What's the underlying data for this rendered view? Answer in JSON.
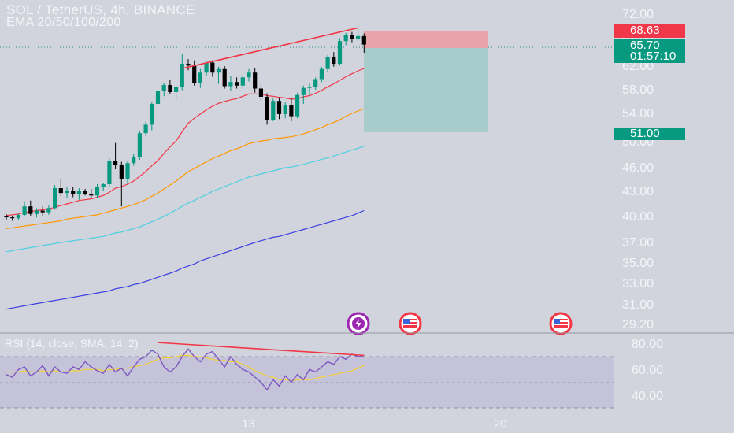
{
  "header": {
    "symbol_line": "SOL / TetherUS, 4h, BINANCE",
    "indicator_line": "EMA 20/50/100/200"
  },
  "rsi": {
    "label": "RSI (14, close, SMA, 14, 2)"
  },
  "price_tags": {
    "stop": "68.63",
    "last_price": "65.70",
    "countdown": "01:57:10",
    "target": "51.00"
  },
  "colors": {
    "background": "#d1d4dc",
    "up_candle": "#089981",
    "down_candle": "#000000",
    "ema20": "#f23645",
    "ema50": "#ff9800",
    "ema100": "#4dd0e1",
    "ema200": "#3b3fe0",
    "rsi_line": "#7e57c2",
    "rsi_ma": "#f5d235",
    "stop_zone": "#e9a3ab",
    "target_zone": "#a6cccb"
  },
  "icons": [
    "lightning-icon",
    "us-flag-icon",
    "us-flag-icon"
  ],
  "chart_data": {
    "type": "candlestick",
    "price_axis": [
      72.0,
      67.0,
      62.0,
      58.0,
      54.0,
      50.0,
      46.0,
      43.0,
      40.0,
      37.0,
      35.0,
      33.0,
      31.0,
      29.2
    ],
    "rsi_axis": [
      80.0,
      60.0,
      40.0
    ],
    "x_ticks": [
      "13",
      "20"
    ],
    "last_price": 65.7,
    "stop_price": 68.63,
    "target_price": 51.0,
    "entry_price": 65.2,
    "candles": [
      [
        40.0,
        40.3,
        39.6,
        39.9
      ],
      [
        39.9,
        40.1,
        39.5,
        39.8
      ],
      [
        39.8,
        40.3,
        39.6,
        40.2
      ],
      [
        40.2,
        41.8,
        40.0,
        41.2
      ],
      [
        41.2,
        41.9,
        40.0,
        40.3
      ],
      [
        40.3,
        41.0,
        39.9,
        40.7
      ],
      [
        40.7,
        41.2,
        40.1,
        40.5
      ],
      [
        40.5,
        41.3,
        40.2,
        41.0
      ],
      [
        41.0,
        43.8,
        40.8,
        43.4
      ],
      [
        43.4,
        44.6,
        42.4,
        42.8
      ],
      [
        42.8,
        43.5,
        42.2,
        43.1
      ],
      [
        43.1,
        43.5,
        42.3,
        42.7
      ],
      [
        42.7,
        43.4,
        42.0,
        43.0
      ],
      [
        43.0,
        43.3,
        42.5,
        42.7
      ],
      [
        42.7,
        43.3,
        42.2,
        42.5
      ],
      [
        42.5,
        43.9,
        42.2,
        43.6
      ],
      [
        43.6,
        44.0,
        43.1,
        43.9
      ],
      [
        43.9,
        47.4,
        43.6,
        47.0
      ],
      [
        47.0,
        49.8,
        45.8,
        46.4
      ],
      [
        46.4,
        46.9,
        41.2,
        44.6
      ],
      [
        44.6,
        47.0,
        43.9,
        46.7
      ],
      [
        46.7,
        48.2,
        46.3,
        47.6
      ],
      [
        47.6,
        51.5,
        47.2,
        51.2
      ],
      [
        51.2,
        52.8,
        50.8,
        52.4
      ],
      [
        52.4,
        56.0,
        51.6,
        55.6
      ],
      [
        55.6,
        58.3,
        54.7,
        57.8
      ],
      [
        57.8,
        59.2,
        56.9,
        58.8
      ],
      [
        58.8,
        59.6,
        57.2,
        57.6
      ],
      [
        57.6,
        58.8,
        56.2,
        58.4
      ],
      [
        58.4,
        64.1,
        57.9,
        62.4
      ],
      [
        62.4,
        63.2,
        61.3,
        62.1
      ],
      [
        62.1,
        63.0,
        58.7,
        59.2
      ],
      [
        59.2,
        61.5,
        58.3,
        60.9
      ],
      [
        60.9,
        62.9,
        60.3,
        62.6
      ],
      [
        62.6,
        63.0,
        60.2,
        60.9
      ],
      [
        60.9,
        61.9,
        59.0,
        61.5
      ],
      [
        61.5,
        62.0,
        58.2,
        58.6
      ],
      [
        58.6,
        60.4,
        57.8,
        59.3
      ],
      [
        59.3,
        60.1,
        58.2,
        58.7
      ],
      [
        58.7,
        60.5,
        58.3,
        60.1
      ],
      [
        60.1,
        61.5,
        59.4,
        60.9
      ],
      [
        60.9,
        61.6,
        57.5,
        58.2
      ],
      [
        58.2,
        58.9,
        56.2,
        56.8
      ],
      [
        56.8,
        57.4,
        52.4,
        53.1
      ],
      [
        53.1,
        56.5,
        52.9,
        56.1
      ],
      [
        56.1,
        56.7,
        53.2,
        53.9
      ],
      [
        53.9,
        55.9,
        53.3,
        55.4
      ],
      [
        55.4,
        56.7,
        52.9,
        53.6
      ],
      [
        53.6,
        57.5,
        53.3,
        57.1
      ],
      [
        57.1,
        58.7,
        55.6,
        58.3
      ],
      [
        58.3,
        59.1,
        57.1,
        58.5
      ],
      [
        58.5,
        60.1,
        58.0,
        59.8
      ],
      [
        59.8,
        61.9,
        59.3,
        61.5
      ],
      [
        61.5,
        63.9,
        61.0,
        63.6
      ],
      [
        63.6,
        64.4,
        61.9,
        62.4
      ],
      [
        62.4,
        66.8,
        62.1,
        66.3
      ],
      [
        66.3,
        67.9,
        65.6,
        67.4
      ],
      [
        67.4,
        68.1,
        66.1,
        66.6
      ],
      [
        66.6,
        69.6,
        66.3,
        67.2
      ],
      [
        67.2,
        67.8,
        64.3,
        65.7
      ]
    ],
    "ema20": [
      40.1,
      40.2,
      40.3,
      40.5,
      40.6,
      40.7,
      40.8,
      40.9,
      41.1,
      41.3,
      41.5,
      41.7,
      41.9,
      42.0,
      42.1,
      42.3,
      42.5,
      42.9,
      43.4,
      43.6,
      43.9,
      44.3,
      44.9,
      45.5,
      46.3,
      47.1,
      48.2,
      49.2,
      50.1,
      51.4,
      52.6,
      53.3,
      53.9,
      54.6,
      55.2,
      55.7,
      56.0,
      56.3,
      56.5,
      56.9,
      57.3,
      57.3,
      57.3,
      57.0,
      56.9,
      56.7,
      56.6,
      56.4,
      56.5,
      56.8,
      57.0,
      57.4,
      57.9,
      58.5,
      59.0,
      59.6,
      60.2,
      60.7,
      61.2,
      61.6
    ],
    "ema50": [
      38.6,
      38.7,
      38.8,
      38.9,
      39.0,
      39.1,
      39.2,
      39.3,
      39.4,
      39.5,
      39.7,
      39.8,
      39.9,
      40.0,
      40.1,
      40.2,
      40.4,
      40.6,
      40.8,
      41.0,
      41.2,
      41.4,
      41.7,
      42.0,
      42.4,
      42.8,
      43.3,
      43.8,
      44.3,
      44.9,
      45.5,
      45.9,
      46.4,
      46.9,
      47.4,
      47.8,
      48.2,
      48.6,
      48.9,
      49.3,
      49.7,
      49.9,
      50.1,
      50.2,
      50.4,
      50.5,
      50.6,
      50.7,
      50.9,
      51.1,
      51.4,
      51.7,
      52.0,
      52.4,
      52.7,
      53.1,
      53.6,
      54.0,
      54.4,
      54.8
    ],
    "ema100": [
      36.1,
      36.2,
      36.3,
      36.4,
      36.5,
      36.6,
      36.7,
      36.8,
      36.9,
      37.0,
      37.1,
      37.2,
      37.3,
      37.4,
      37.5,
      37.6,
      37.7,
      37.9,
      38.1,
      38.2,
      38.4,
      38.6,
      38.8,
      39.1,
      39.4,
      39.7,
      40.0,
      40.4,
      40.8,
      41.2,
      41.6,
      41.9,
      42.3,
      42.6,
      43.0,
      43.3,
      43.6,
      43.9,
      44.2,
      44.5,
      44.8,
      45.0,
      45.2,
      45.4,
      45.6,
      45.8,
      46.0,
      46.1,
      46.3,
      46.5,
      46.8,
      47.0,
      47.3,
      47.5,
      47.8,
      48.1,
      48.4,
      48.7,
      49.0,
      49.3
    ],
    "ema200": [
      30.6,
      30.7,
      30.8,
      30.9,
      31.0,
      31.1,
      31.2,
      31.3,
      31.4,
      31.5,
      31.6,
      31.7,
      31.8,
      31.9,
      32.0,
      32.1,
      32.2,
      32.3,
      32.5,
      32.6,
      32.7,
      32.9,
      33.0,
      33.2,
      33.4,
      33.6,
      33.8,
      34.0,
      34.2,
      34.5,
      34.7,
      34.9,
      35.2,
      35.4,
      35.6,
      35.8,
      36.0,
      36.2,
      36.4,
      36.6,
      36.8,
      37.0,
      37.2,
      37.4,
      37.6,
      37.7,
      37.9,
      38.1,
      38.3,
      38.5,
      38.7,
      38.9,
      39.1,
      39.3,
      39.5,
      39.7,
      39.9,
      40.1,
      40.4,
      40.7
    ],
    "rsi": [
      56,
      54,
      60,
      62,
      55,
      58,
      63,
      55,
      62,
      58,
      57,
      62,
      60,
      66,
      62,
      59,
      57,
      64,
      58,
      61,
      55,
      62,
      68,
      70,
      75,
      72,
      62,
      58,
      62,
      70,
      76,
      70,
      66,
      72,
      74,
      68,
      62,
      70,
      64,
      60,
      58,
      54,
      50,
      44,
      52,
      47,
      55,
      50,
      56,
      52,
      60,
      58,
      62,
      66,
      64,
      70,
      68,
      72,
      70,
      71
    ],
    "rsi_ma": [
      58,
      58,
      58,
      59,
      58,
      58,
      59,
      58,
      59,
      58,
      58,
      59,
      59,
      60,
      60,
      60,
      59,
      60,
      60,
      61,
      61,
      62,
      63,
      64,
      66,
      68,
      69,
      69,
      70,
      71,
      71,
      70,
      70,
      69,
      68,
      67,
      67,
      66,
      66,
      64,
      62,
      59,
      57,
      55,
      54,
      52,
      52,
      51,
      52,
      52,
      52,
      53,
      54,
      55,
      56,
      57,
      58,
      59,
      61,
      63
    ],
    "trendline_price": [
      [
        29,
        61.6
      ],
      [
        58,
        69.0
      ]
    ],
    "trendline_rsi": [
      [
        25,
        81
      ],
      [
        59,
        71
      ]
    ]
  }
}
